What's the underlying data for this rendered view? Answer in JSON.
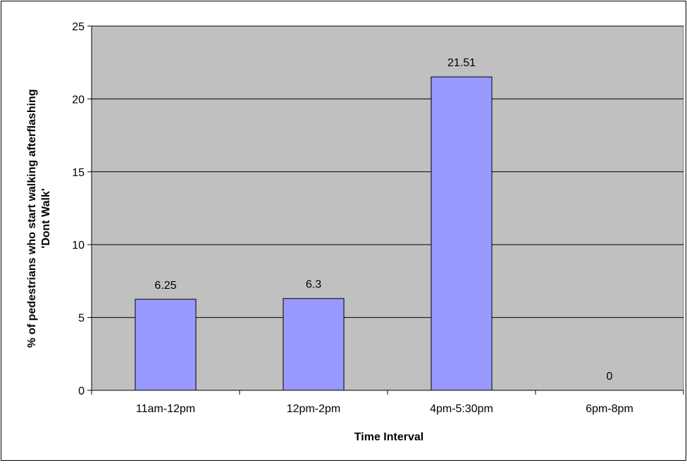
{
  "chart_data": {
    "type": "bar",
    "title": "",
    "xlabel": "Time Interval",
    "ylabel_lines": [
      "% of pedestrians who start walking afterflashing",
      "'Dont Walk'"
    ],
    "categories": [
      "11am-12pm",
      "12pm-2pm",
      "4pm-5:30pm",
      "6pm-8pm"
    ],
    "values": [
      6.25,
      6.3,
      21.51,
      0
    ],
    "data_labels": [
      "6.25",
      "6.3",
      "21.51",
      "0"
    ],
    "ylim": [
      0,
      25
    ],
    "yticks": [
      0,
      5,
      10,
      15,
      20,
      25
    ],
    "grid": true,
    "legend": "none",
    "colors": {
      "bar_fill": "#9999FF",
      "plot_background": "#C0C0C0",
      "gridline": "#000000",
      "border": "#000000"
    }
  }
}
